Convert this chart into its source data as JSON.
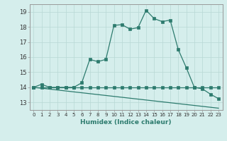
{
  "title": "",
  "xlabel": "Humidex (Indice chaleur)",
  "background_color": "#d5eeec",
  "line_color": "#2d7b6e",
  "grid_color": "#b8d8d5",
  "xlim": [
    -0.5,
    23.5
  ],
  "ylim": [
    12.5,
    19.5
  ],
  "xticks": [
    0,
    1,
    2,
    3,
    4,
    5,
    6,
    7,
    8,
    9,
    10,
    11,
    12,
    13,
    14,
    15,
    16,
    17,
    18,
    19,
    20,
    21,
    22,
    23
  ],
  "yticks": [
    13,
    14,
    15,
    16,
    17,
    18,
    19
  ],
  "series1_x": [
    0,
    1,
    2,
    3,
    4,
    5,
    6,
    7,
    8,
    9,
    10,
    11,
    12,
    13,
    14,
    15,
    16,
    17,
    18,
    19,
    20,
    21,
    22,
    23
  ],
  "series1_y": [
    14.0,
    14.2,
    14.0,
    14.0,
    14.0,
    14.0,
    14.3,
    15.85,
    15.7,
    15.85,
    18.1,
    18.15,
    17.85,
    17.95,
    19.1,
    18.55,
    18.35,
    18.45,
    16.5,
    15.3,
    14.0,
    13.9,
    13.55,
    13.25
  ],
  "series2_x": [
    0,
    1,
    2,
    3,
    4,
    5,
    6,
    7,
    8,
    9,
    10,
    11,
    12,
    13,
    14,
    15,
    16,
    17,
    18,
    19,
    20,
    21,
    22,
    23
  ],
  "series2_y": [
    14.0,
    14.0,
    14.0,
    14.0,
    14.0,
    14.0,
    14.0,
    14.0,
    14.0,
    14.0,
    14.0,
    14.0,
    14.0,
    14.0,
    14.0,
    14.0,
    14.0,
    14.0,
    14.0,
    14.0,
    14.0,
    14.0,
    14.0,
    14.0
  ],
  "series3_x": [
    0,
    1,
    2,
    3,
    4,
    5,
    6,
    7,
    8,
    9,
    10,
    11,
    12,
    13,
    14,
    15,
    16,
    17,
    18,
    19,
    20,
    21,
    22,
    23
  ],
  "series3_y": [
    14.0,
    13.94,
    13.88,
    13.82,
    13.76,
    13.7,
    13.64,
    13.58,
    13.52,
    13.46,
    13.4,
    13.34,
    13.28,
    13.22,
    13.16,
    13.1,
    13.04,
    12.98,
    12.92,
    12.86,
    12.8,
    12.74,
    12.68,
    12.62
  ]
}
